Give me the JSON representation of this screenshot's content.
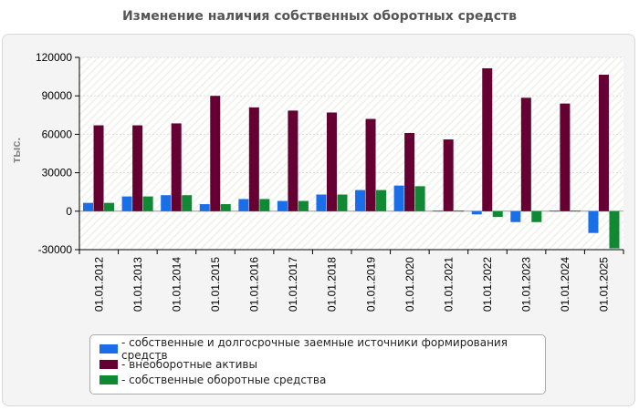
{
  "chart_data": {
    "type": "bar",
    "title": "Изменение наличия собственных оборотных средств",
    "ylabel": "тыс.",
    "xlabel": "",
    "ylim": [
      -30000,
      120000
    ],
    "yticks": [
      -30000,
      0,
      30000,
      60000,
      90000,
      120000
    ],
    "categories": [
      "01.01.2012",
      "01.01.2013",
      "01.01.2014",
      "01.01.2015",
      "01.01.2016",
      "01.01.2017",
      "01.01.2018",
      "01.01.2019",
      "01.01.2020",
      "01.01.2021",
      "01.01.2022",
      "01.01.2023",
      "01.01.2024",
      "01.01.2025"
    ],
    "series": [
      {
        "name": "- собственные и долгосрочные заемные источники формирования средств",
        "color": "#1a6ee8",
        "values": [
          6500,
          11500,
          12500,
          5500,
          9500,
          8000,
          13000,
          16500,
          20000,
          500,
          -2500,
          -8500,
          500,
          -17000
        ]
      },
      {
        "name": "- внеоборотные активы",
        "color": "#660033",
        "values": [
          67000,
          67000,
          68500,
          90000,
          81000,
          78500,
          77000,
          72000,
          61000,
          56000,
          111500,
          88500,
          84000,
          106500
        ]
      },
      {
        "name": "- собственные оборотные средства",
        "color": "#118833",
        "values": [
          6500,
          11500,
          12500,
          5500,
          9500,
          8000,
          13000,
          16500,
          19500,
          500,
          -4500,
          -8500,
          500,
          -29000
        ]
      }
    ],
    "legend_position": "bottom"
  }
}
